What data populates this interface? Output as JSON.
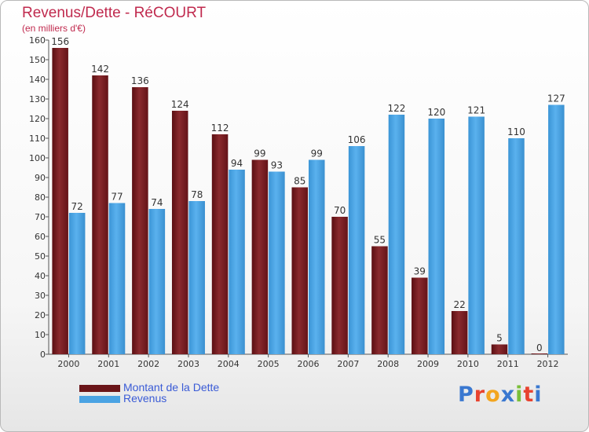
{
  "header": {
    "title": "Revenus/Dette - RéCOURT",
    "subtitle": "(en milliers d'€)"
  },
  "colors": {
    "dette": "#7a1c20",
    "revenus": "#4aa3e3",
    "title": "#c02a4e",
    "legend_text": "#3a5bd6"
  },
  "logo": {
    "text": "Proxiti",
    "letter_colors": [
      "#3a78d0",
      "#e8432f",
      "#f3a51f",
      "#3a78d0",
      "#7abf3a",
      "#e8432f",
      "#3a78d0"
    ]
  },
  "chart_data": {
    "type": "bar",
    "title": "Revenus/Dette - RéCOURT",
    "ylabel": "(en milliers d'€)",
    "categories": [
      "2000",
      "2001",
      "2002",
      "2003",
      "2004",
      "2005",
      "2006",
      "2007",
      "2008",
      "2009",
      "2010",
      "2011",
      "2012"
    ],
    "series": [
      {
        "name": "Montant de la Dette",
        "values": [
          156,
          142,
          136,
          124,
          112,
          99,
          85,
          70,
          55,
          39,
          22,
          5,
          0
        ]
      },
      {
        "name": "Revenus",
        "values": [
          72,
          77,
          74,
          78,
          94,
          93,
          99,
          106,
          122,
          120,
          121,
          110,
          127
        ]
      }
    ],
    "ylim": [
      0,
      160
    ],
    "yticks": [
      0,
      10,
      20,
      30,
      40,
      50,
      60,
      70,
      80,
      90,
      100,
      110,
      120,
      130,
      140,
      150,
      160
    ],
    "grid": false,
    "legend_position": "bottom-left"
  }
}
